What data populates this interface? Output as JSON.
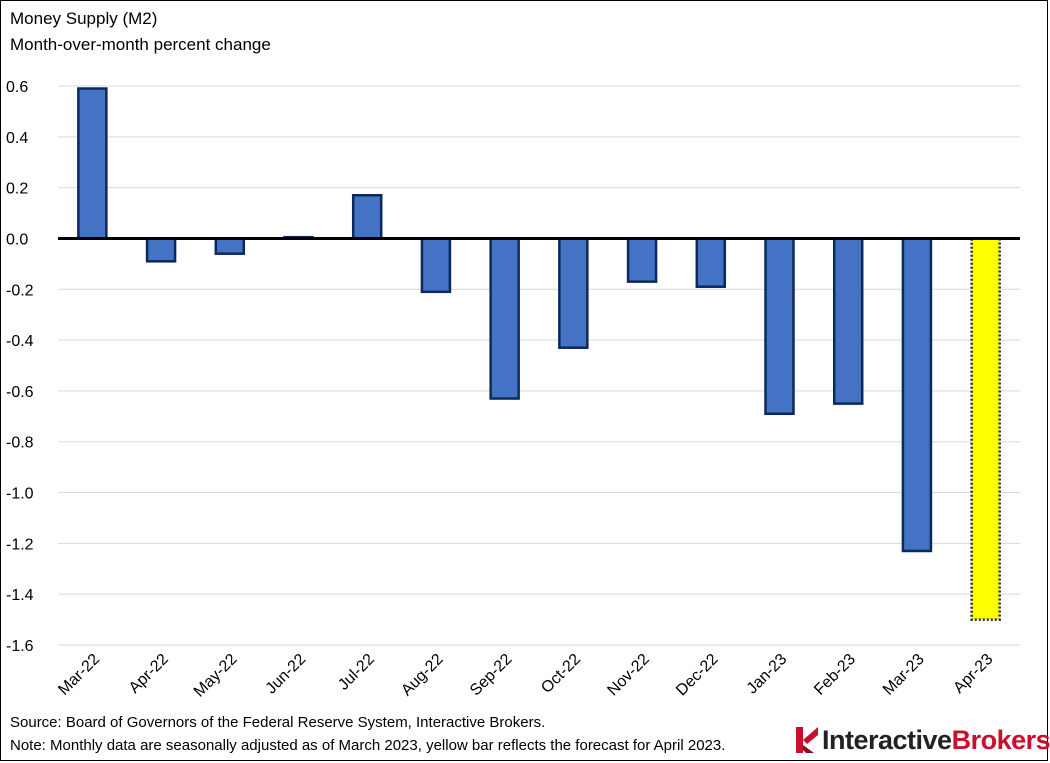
{
  "chart_data": {
    "type": "bar",
    "title": "Money Supply (M2)",
    "subtitle": "Month-over-month percent change",
    "categories": [
      "Mar-22",
      "Apr-22",
      "May-22",
      "Jun-22",
      "Jul-22",
      "Aug-22",
      "Sep-22",
      "Oct-22",
      "Nov-22",
      "Dec-22",
      "Jan-23",
      "Feb-23",
      "Mar-23",
      "Apr-23"
    ],
    "values": [
      0.59,
      -0.09,
      -0.06,
      0.005,
      0.17,
      -0.21,
      -0.63,
      -0.43,
      -0.17,
      -0.19,
      -0.69,
      -0.65,
      -1.23,
      -1.5
    ],
    "forecast_index": 13,
    "ylim": [
      -1.6,
      0.6
    ],
    "yticks": [
      0.6,
      0.4,
      0.2,
      0.0,
      -0.2,
      -0.4,
      -0.6,
      -0.8,
      -1.0,
      -1.2,
      -1.4,
      -1.6
    ],
    "ytick_labels": [
      "0.6",
      "0.4",
      "0.2",
      "0.0",
      "-0.2",
      "-0.4",
      "-0.6",
      "-0.8",
      "-1.0",
      "-1.2",
      "-1.4",
      "-1.6"
    ],
    "grid": true,
    "xlabel": "",
    "ylabel": "",
    "colors": {
      "bar_fill": "#4472C4",
      "bar_stroke": "#0B2A5B",
      "forecast_fill": "#FFFF00",
      "forecast_stroke": "#1F2A44",
      "grid": "#D9D9D9",
      "zero_line": "#000000"
    }
  },
  "footnotes": {
    "source": "Source: Board of Governors of the Federal Reserve System, Interactive Brokers.",
    "note": "Note: Monthly data are seasonally adjusted as of March 2023, yellow bar reflects the forecast for April 2023."
  },
  "brand": {
    "logo_icon": "interactive-brokers-logo-icon",
    "name_part1": "Interactive",
    "name_part2": "Brokers",
    "colors": {
      "part1": "#222222",
      "part2": "#C8102E",
      "logo": "#C8102E"
    }
  }
}
